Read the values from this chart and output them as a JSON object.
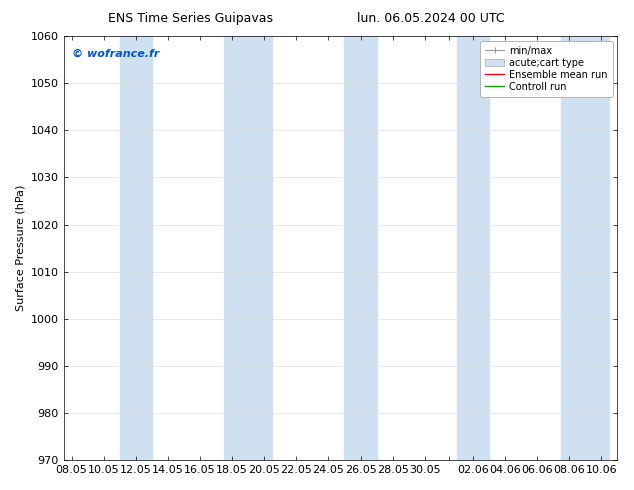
{
  "title_left": "ENS Time Series Guipavas",
  "title_right": "lun. 06.05.2024 00 UTC",
  "ylabel": "Surface Pressure (hPa)",
  "ylim": [
    970,
    1060
  ],
  "yticks": [
    970,
    980,
    990,
    1000,
    1010,
    1020,
    1030,
    1040,
    1050,
    1060
  ],
  "xtick_labels": [
    "08.05",
    "10.05",
    "12.05",
    "14.05",
    "16.05",
    "18.05",
    "20.05",
    "22.05",
    "24.05",
    "26.05",
    "28.05",
    "30.05",
    "",
    "02.06",
    "04.06",
    "06.06",
    "08.06",
    "10.06"
  ],
  "background_color": "#ffffff",
  "plot_bg_color": "#ffffff",
  "shaded_band_color": "#cfe0f0",
  "shaded_band_alpha": 1.0,
  "watermark_text": "© wofrance.fr",
  "watermark_color": "#0055cc",
  "legend_entries": [
    "min/max",
    "acute;cart type",
    "Ensemble mean run",
    "Controll run"
  ],
  "grid_color": "#e0e0e0",
  "tick_color": "#000000",
  "font_size": 8,
  "title_fontsize": 9
}
